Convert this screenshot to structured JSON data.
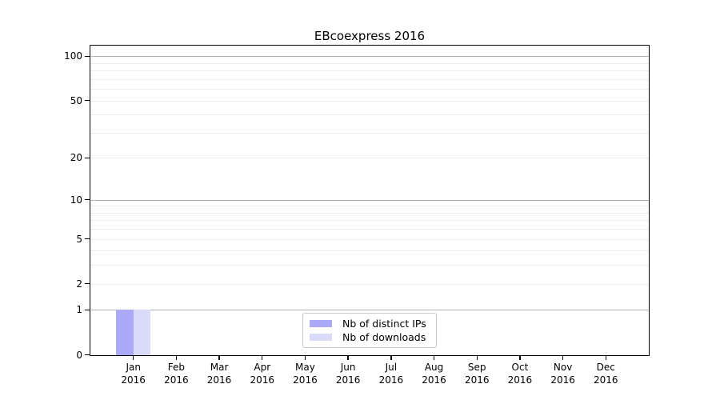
{
  "chart_data": {
    "type": "bar",
    "title": "EBcoexpress 2016",
    "categories": [
      "Jan",
      "Feb",
      "Mar",
      "Apr",
      "May",
      "Jun",
      "Jul",
      "Aug",
      "Sep",
      "Oct",
      "Nov",
      "Dec"
    ],
    "year_label": "2016",
    "series": [
      {
        "name": "Nb of distinct IPs",
        "color": "#aaaaf8",
        "values": [
          1,
          0,
          0,
          0,
          0,
          0,
          0,
          0,
          0,
          0,
          0,
          0
        ]
      },
      {
        "name": "Nb of downloads",
        "color": "#dadaf9",
        "values": [
          1,
          0,
          0,
          0,
          0,
          0,
          0,
          0,
          0,
          0,
          0,
          0
        ]
      }
    ],
    "y_axis": {
      "scale": "log10(1+x)",
      "tick_values": [
        0,
        1,
        2,
        5,
        10,
        20,
        50,
        100
      ],
      "tick_labels": [
        "0",
        "1",
        "2",
        "5",
        "10",
        "20",
        "50",
        "100"
      ],
      "major_grid_values": [
        1,
        10,
        100
      ],
      "minor_grid_values": [
        2,
        3,
        4,
        5,
        6,
        7,
        8,
        9,
        20,
        30,
        40,
        50,
        60,
        70,
        80,
        90
      ],
      "ylim": [
        0,
        116
      ]
    },
    "grid": {
      "major_color": "#b0b0b0",
      "minor_color": "#ededed"
    },
    "legend": {
      "position": "lower center"
    }
  }
}
